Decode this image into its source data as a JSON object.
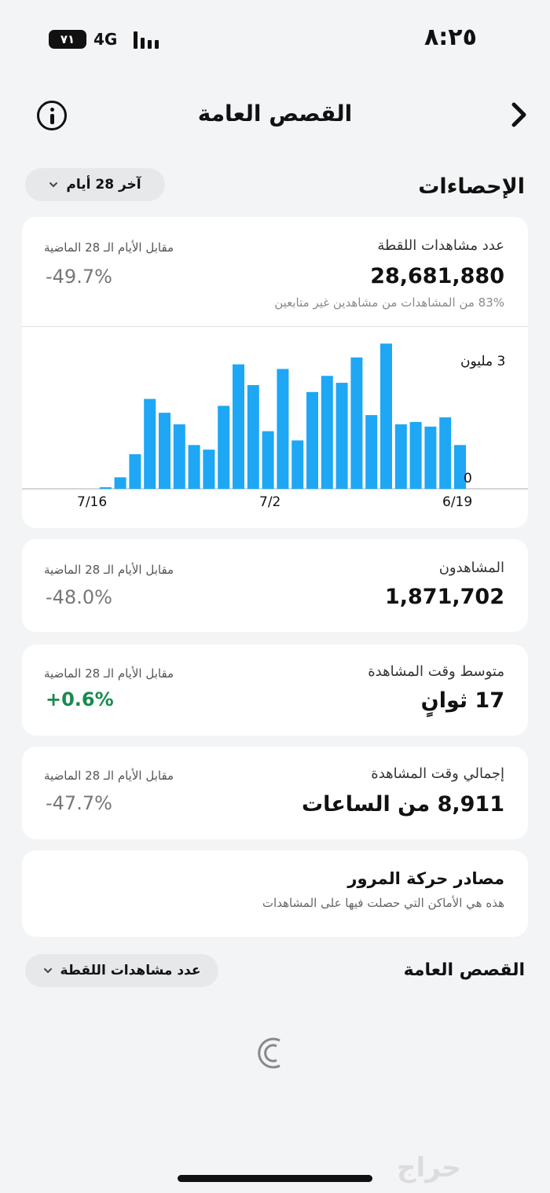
{
  "status": {
    "time": "٨:٢٥",
    "battery": "٧١",
    "network": "4G"
  },
  "header": {
    "title": "القصص العامة"
  },
  "stats": {
    "title": "الإحصاءات",
    "range_label": "آخر 28 أيام"
  },
  "snap_views": {
    "label": "عدد مشاهدات اللقطة",
    "value": "28,681,880",
    "note": "83% من المشاهدات من مشاهدين غير متابعين",
    "compare_label": "مقابل الأيام الـ 28 الماضية",
    "compare_value": "-49.7%"
  },
  "chart_data": {
    "type": "bar",
    "x_tick_labels": [
      "6/19",
      "7/2",
      "7/16"
    ],
    "y_tick_labels": [
      "3 مليون",
      "0"
    ],
    "ylim": [
      0,
      3300000
    ],
    "x_direction": "right-to-left",
    "bar_color": "#1ea7f4",
    "grid": false,
    "values": [
      950000,
      1550000,
      1350000,
      1450000,
      1400000,
      3150000,
      1600000,
      2850000,
      2300000,
      2450000,
      2100000,
      1050000,
      2600000,
      1250000,
      2250000,
      2700000,
      1800000,
      850000,
      950000,
      1400000,
      1650000,
      1950000,
      750000,
      250000,
      30000,
      0,
      0,
      0
    ]
  },
  "viewers": {
    "label": "المشاهدون",
    "value": "1,871,702",
    "compare_label": "مقابل الأيام الـ 28 الماضية",
    "compare_value": "-48.0%"
  },
  "avg_watch": {
    "label": "متوسط وقت المشاهدة",
    "value": "17 ثوانٍ",
    "compare_label": "مقابل الأيام الـ 28 الماضية",
    "compare_value": "+0.6%"
  },
  "total_watch": {
    "label": "إجمالي وقت المشاهدة",
    "value": "8,911 من الساعات",
    "compare_label": "مقابل الأيام الـ 28 الماضية",
    "compare_value": "-47.7%"
  },
  "traffic": {
    "title": "مصادر حركة المرور",
    "subtitle": "هذه هي الأماكن التي حصلت فيها على المشاهدات"
  },
  "public_stories": {
    "title": "القصص العامة",
    "metric_label": "عدد مشاهدات اللقطة"
  },
  "colors": {
    "accent": "#1ea7f4",
    "positive": "#1a8a4f",
    "background": "#f3f4f6"
  },
  "watermark": "حراج"
}
